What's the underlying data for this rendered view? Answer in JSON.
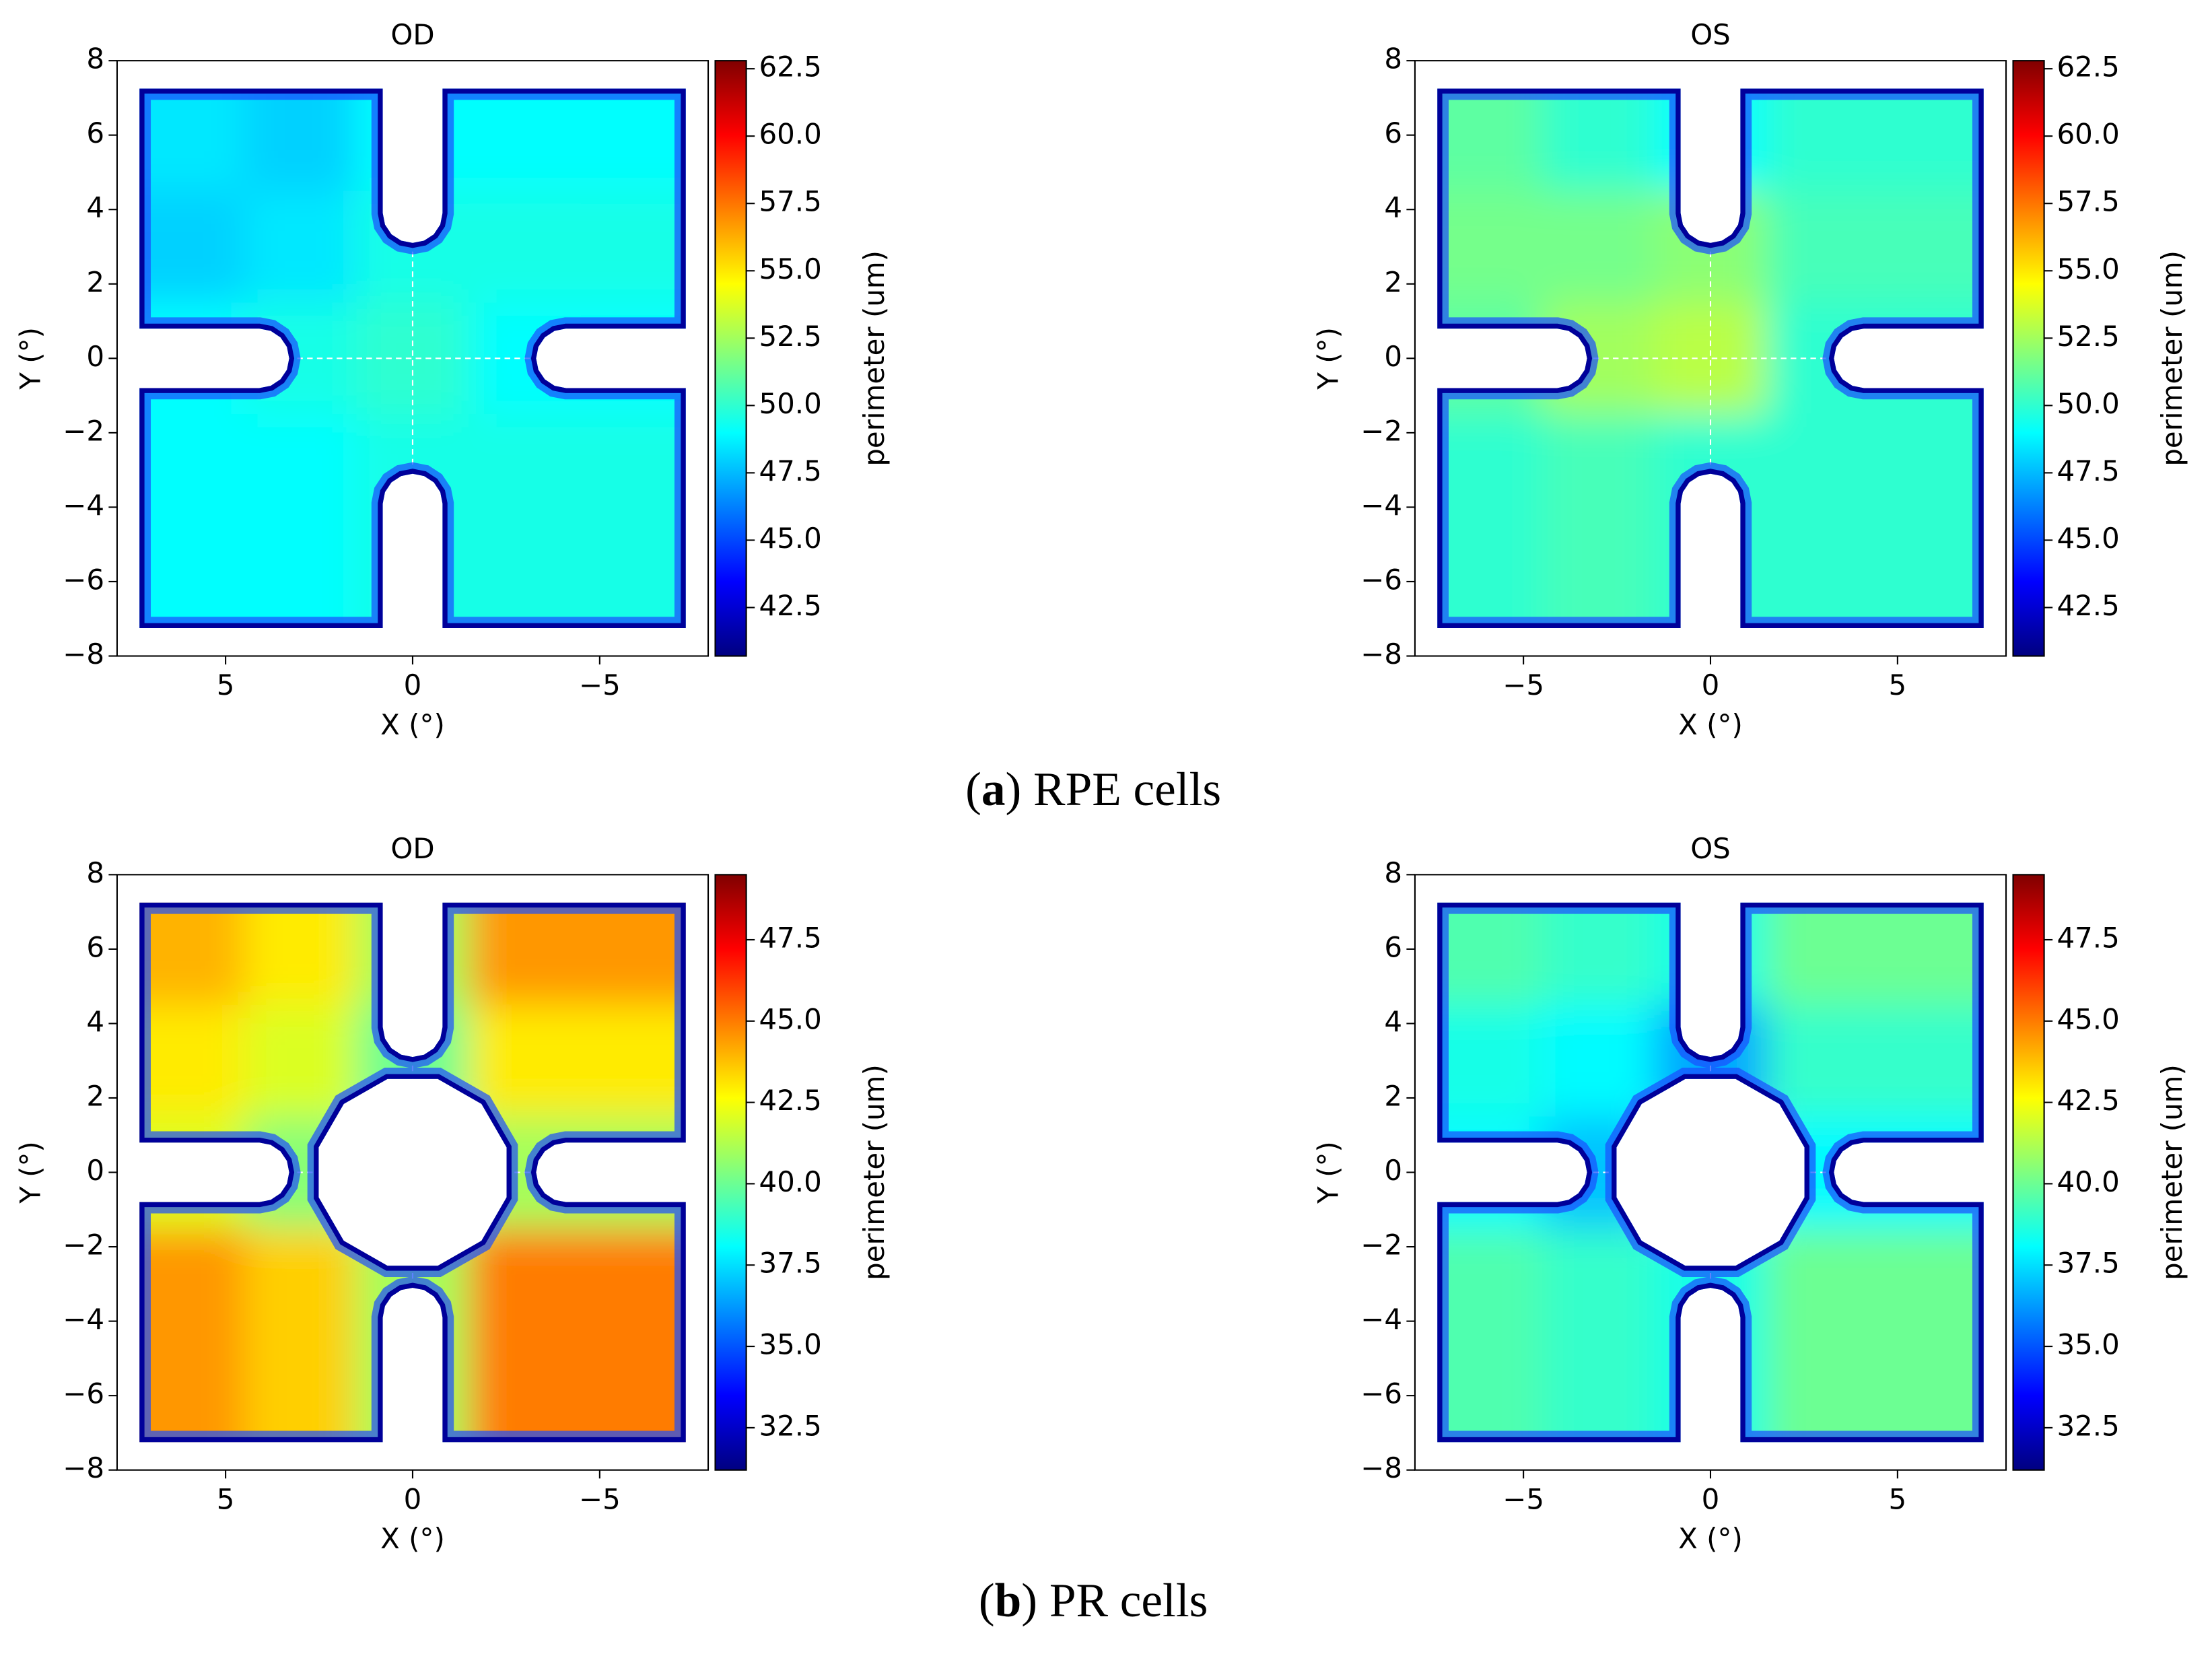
{
  "chart_data": [
    {
      "type": "heatmap",
      "title": "OD",
      "x_label": "X (°)",
      "y_label": "Y (°)",
      "colorbar_label": "perimeter (um)",
      "xlim": [
        7.9,
        -7.9
      ],
      "ylim": [
        -8,
        8
      ],
      "xticks": [
        5,
        0,
        {
          "value": -5,
          "label": "−5"
        }
      ],
      "yticks": [
        {
          "value": -8,
          "label": "−8"
        },
        {
          "value": -6,
          "label": "−6"
        },
        {
          "value": -4,
          "label": "−4"
        },
        {
          "value": -2,
          "label": "−2"
        },
        0,
        2,
        4,
        6,
        8
      ],
      "zlim": [
        40.7,
        62.8
      ],
      "colorbar_ticks": [
        42.5,
        {
          "value": 45,
          "label": "45.0"
        },
        47.5,
        {
          "value": 50,
          "label": "50.0"
        },
        52.5,
        {
          "value": 55,
          "label": "55.0"
        },
        57.5,
        {
          "value": 60,
          "label": "60.0"
        },
        62.5
      ],
      "x": [
        6,
        3,
        0,
        -3,
        -6
      ],
      "y": [
        6,
        3,
        0,
        -3,
        -6
      ],
      "values": [
        [
          48.5,
          48,
          49,
          49.5,
          49
        ],
        [
          48,
          48.5,
          49.5,
          50.5,
          49.5
        ],
        [
          49,
          49.5,
          50,
          50,
          49
        ],
        [
          49,
          49.5,
          49.5,
          49.5,
          49
        ],
        [
          49,
          49,
          49.5,
          50,
          49.5
        ]
      ]
    },
    {
      "type": "heatmap",
      "title": "OS",
      "x_label": "X (°)",
      "y_label": "Y (°)",
      "colorbar_label": "perimeter (um)",
      "xlim": [
        -7.9,
        7.9
      ],
      "ylim": [
        -8,
        8
      ],
      "xticks": [
        {
          "value": -5,
          "label": "−5"
        },
        0,
        5
      ],
      "yticks": [
        {
          "value": -8,
          "label": "−8"
        },
        {
          "value": -6,
          "label": "−6"
        },
        {
          "value": -4,
          "label": "−4"
        },
        {
          "value": -2,
          "label": "−2"
        },
        0,
        2,
        4,
        6,
        8
      ],
      "zlim": [
        40.7,
        62.8
      ],
      "colorbar_ticks": [
        42.5,
        {
          "value": 45,
          "label": "45.0"
        },
        47.5,
        {
          "value": 50,
          "label": "50.0"
        },
        52.5,
        {
          "value": 55,
          "label": "55.0"
        },
        57.5,
        {
          "value": 60,
          "label": "60.0"
        },
        62.5
      ],
      "x": [
        -6,
        -3,
        0,
        3,
        6
      ],
      "y": [
        6,
        3,
        0,
        -3,
        -6
      ],
      "values": [
        [
          51,
          50,
          49,
          50,
          50
        ],
        [
          51.5,
          51.5,
          52,
          51,
          50.5
        ],
        [
          51,
          52.5,
          53,
          51.5,
          50
        ],
        [
          50.5,
          51.5,
          51.5,
          50,
          50
        ],
        [
          50,
          50.5,
          50,
          49.5,
          50
        ]
      ]
    },
    {
      "type": "heatmap",
      "title": "OD",
      "x_label": "X (°)",
      "y_label": "Y (°)",
      "colorbar_label": "perimeter (um)",
      "xlim": [
        7.9,
        -7.9
      ],
      "ylim": [
        -8,
        8
      ],
      "xticks": [
        5,
        0,
        {
          "value": -5,
          "label": "−5"
        }
      ],
      "yticks": [
        {
          "value": -8,
          "label": "−8"
        },
        {
          "value": -6,
          "label": "−6"
        },
        {
          "value": -4,
          "label": "−4"
        },
        {
          "value": -2,
          "label": "−2"
        },
        0,
        2,
        4,
        6,
        8
      ],
      "zlim": [
        31.2,
        49.5
      ],
      "colorbar_ticks": [
        32.5,
        {
          "value": 35,
          "label": "35.0"
        },
        37.5,
        {
          "value": 40,
          "label": "40.0"
        },
        42.5,
        {
          "value": 45,
          "label": "45.0"
        },
        47.5
      ],
      "x": [
        6,
        3,
        0,
        -3,
        -6
      ],
      "y": [
        6,
        3,
        0,
        -3,
        -6
      ],
      "values": [
        [
          44,
          43,
          41,
          43,
          44.5
        ],
        [
          43,
          42,
          40,
          42,
          43
        ],
        [
          42,
          40.5,
          null,
          40.5,
          41
        ],
        [
          43,
          42,
          40,
          42,
          43.5
        ],
        [
          44.5,
          43.5,
          41,
          43.5,
          45
        ]
      ]
    },
    {
      "type": "heatmap",
      "title": "OS",
      "x_label": "X (°)",
      "y_label": "Y (°)",
      "colorbar_label": "perimeter (um)",
      "xlim": [
        -7.9,
        7.9
      ],
      "ylim": [
        -8,
        8
      ],
      "xticks": [
        {
          "value": -5,
          "label": "−5"
        },
        0,
        5
      ],
      "yticks": [
        {
          "value": -8,
          "label": "−8"
        },
        {
          "value": -6,
          "label": "−6"
        },
        {
          "value": -4,
          "label": "−4"
        },
        {
          "value": -2,
          "label": "−2"
        },
        0,
        2,
        4,
        6,
        8
      ],
      "zlim": [
        31.2,
        49.5
      ],
      "colorbar_ticks": [
        32.5,
        {
          "value": 35,
          "label": "35.0"
        },
        37.5,
        {
          "value": 40,
          "label": "40.0"
        },
        42.5,
        {
          "value": 45,
          "label": "45.0"
        },
        47.5
      ],
      "x": [
        -6,
        -3,
        0,
        3,
        6
      ],
      "y": [
        6,
        3,
        0,
        -3,
        -6
      ],
      "values": [
        [
          39.5,
          39,
          38.5,
          39.5,
          40
        ],
        [
          38.5,
          38,
          36.5,
          38,
          39
        ],
        [
          38,
          37,
          null,
          37,
          38
        ],
        [
          38.5,
          37.5,
          36.5,
          38,
          39
        ],
        [
          39.5,
          39,
          38.5,
          39.5,
          40
        ]
      ]
    }
  ],
  "captions": [
    {
      "open": "(",
      "letter": "a",
      "rest": ") RPE cells"
    },
    {
      "open": "(",
      "letter": "b",
      "rest": ") PR cells"
    }
  ]
}
